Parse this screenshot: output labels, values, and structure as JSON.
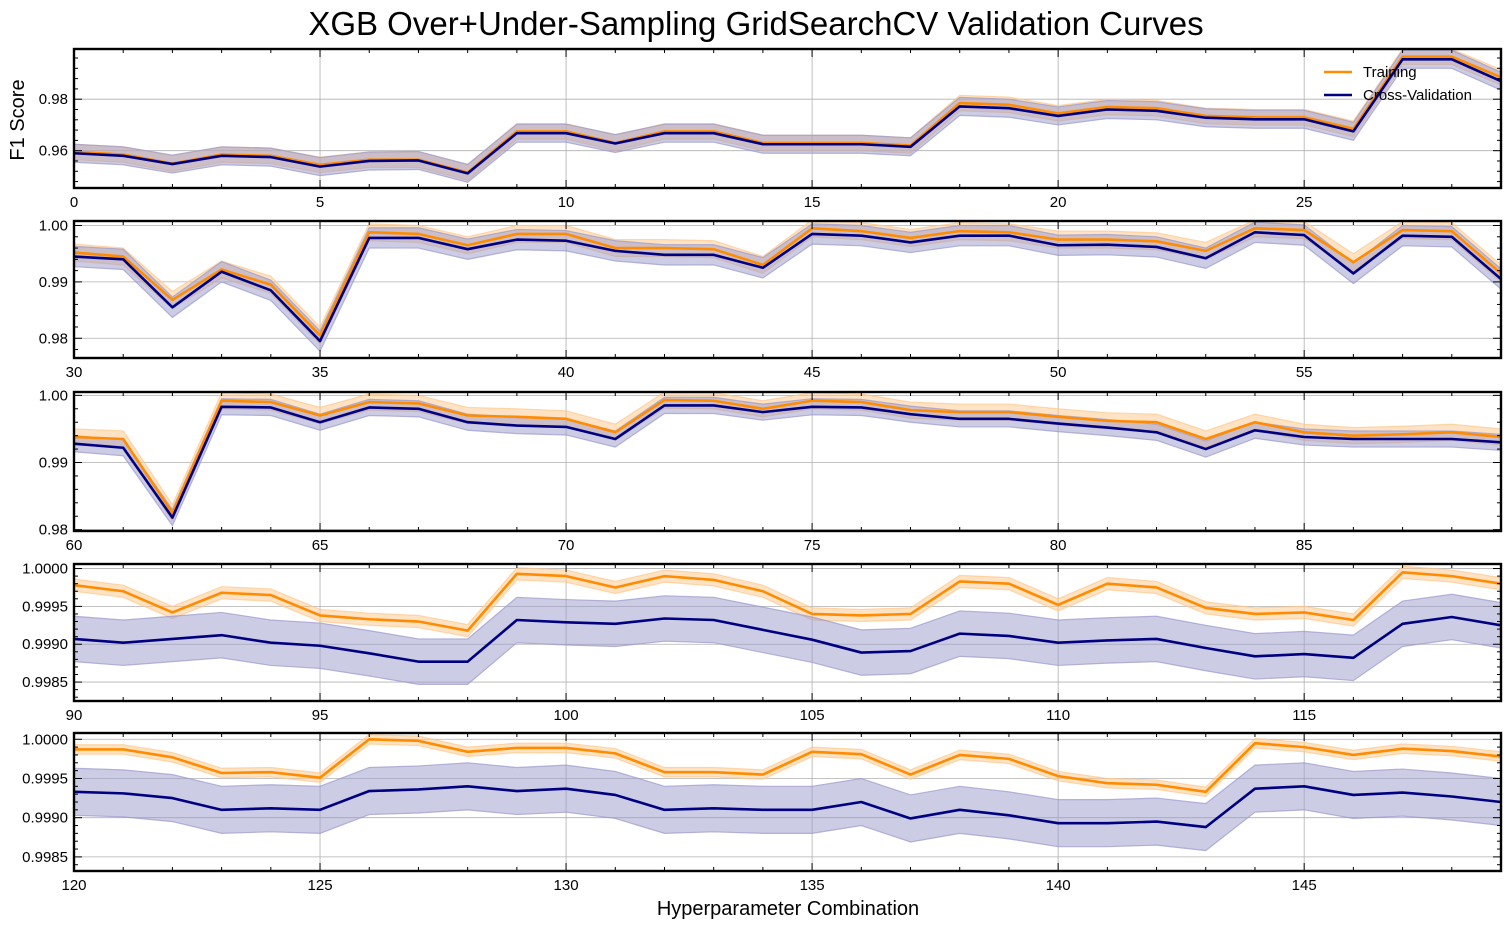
{
  "figure": {
    "title": "XGB Over+Under-Sampling GridSearchCV Validation Curves",
    "ylabel": "F1 Score",
    "xlabel": "Hyperparameter Combination"
  },
  "legend": {
    "placement": "top-right",
    "entries": [
      "Training",
      "Cross-Validation"
    ]
  },
  "colors": {
    "training": "#ff8c00",
    "training_band": "#ffc88a",
    "cv": "#000080",
    "cv_band": "#9999cc",
    "grid": "#b0b0b0"
  },
  "chart_data": [
    {
      "type": "line",
      "x_start": 0,
      "xlim": [
        0,
        29
      ],
      "xticks": [
        0,
        5,
        10,
        15,
        20,
        25
      ],
      "ylim": [
        0.9455,
        0.9995
      ],
      "yticks": [
        0.96,
        0.98
      ],
      "ytick_labels": [
        "0.96",
        "0.98"
      ],
      "grid": true,
      "series": [
        {
          "name": "Training",
          "values": [
            0.9595,
            0.9585,
            0.955,
            0.9585,
            0.958,
            0.9545,
            0.9565,
            0.9565,
            0.9515,
            0.9675,
            0.9675,
            0.963,
            0.9675,
            0.9675,
            0.963,
            0.963,
            0.963,
            0.962,
            0.9785,
            0.9778,
            0.9745,
            0.977,
            0.9765,
            0.9735,
            0.973,
            0.973,
            0.9685,
            0.9965,
            0.9965,
            0.9885
          ],
          "band": 0.003
        },
        {
          "name": "Cross-Validation",
          "values": [
            0.959,
            0.958,
            0.9548,
            0.958,
            0.9575,
            0.9538,
            0.956,
            0.9562,
            0.9512,
            0.9668,
            0.9668,
            0.9628,
            0.9668,
            0.9668,
            0.9625,
            0.9625,
            0.9625,
            0.9615,
            0.9772,
            0.9765,
            0.9735,
            0.976,
            0.9755,
            0.9728,
            0.9722,
            0.9722,
            0.9675,
            0.9955,
            0.9955,
            0.987
          ],
          "band": 0.0035
        }
      ]
    },
    {
      "type": "line",
      "x_start": 30,
      "xlim": [
        30,
        59
      ],
      "xticks": [
        30,
        35,
        40,
        45,
        50,
        55
      ],
      "ylim": [
        0.9765,
        1.0008
      ],
      "yticks": [
        0.98,
        0.99,
        1.0
      ],
      "ytick_labels": [
        "0.98",
        "0.99",
        "1.00"
      ],
      "grid": true,
      "series": [
        {
          "name": "Training",
          "values": [
            0.9952,
            0.9945,
            0.9868,
            0.9922,
            0.9895,
            0.9805,
            0.9988,
            0.9985,
            0.9965,
            0.9985,
            0.9985,
            0.996,
            0.996,
            0.9958,
            0.993,
            0.9995,
            0.999,
            0.9978,
            0.999,
            0.9988,
            0.9975,
            0.9975,
            0.9972,
            0.9955,
            0.9995,
            0.9992,
            0.9935,
            0.9992,
            0.999,
            0.9915
          ],
          "band": 0.0015
        },
        {
          "name": "Cross-Validation",
          "values": [
            0.9945,
            0.994,
            0.9855,
            0.9918,
            0.9885,
            0.9795,
            0.9978,
            0.9978,
            0.9958,
            0.9975,
            0.9973,
            0.9955,
            0.9948,
            0.9948,
            0.9925,
            0.9985,
            0.9982,
            0.997,
            0.9982,
            0.9982,
            0.9965,
            0.9966,
            0.9962,
            0.9942,
            0.9988,
            0.9983,
            0.9915,
            0.9982,
            0.998,
            0.9905
          ],
          "band": 0.0018
        }
      ]
    },
    {
      "type": "line",
      "x_start": 60,
      "xlim": [
        60,
        89
      ],
      "xticks": [
        60,
        65,
        70,
        75,
        80,
        85
      ],
      "ylim": [
        0.9798,
        1.0005
      ],
      "yticks": [
        0.98,
        0.99,
        1.0
      ],
      "ytick_labels": [
        "0.98",
        "0.99",
        "1.00"
      ],
      "grid": true,
      "series": [
        {
          "name": "Training",
          "values": [
            0.9938,
            0.9935,
            0.9825,
            0.9992,
            0.999,
            0.997,
            0.999,
            0.9988,
            0.997,
            0.9968,
            0.9965,
            0.9945,
            0.9993,
            0.9992,
            0.998,
            0.9992,
            0.999,
            0.9978,
            0.9975,
            0.9975,
            0.9968,
            0.9962,
            0.996,
            0.9935,
            0.996,
            0.9945,
            0.994,
            0.9942,
            0.9945,
            0.9938
          ],
          "band": 0.0012
        },
        {
          "name": "Cross-Validation",
          "values": [
            0.9928,
            0.9922,
            0.9818,
            0.9983,
            0.9982,
            0.996,
            0.9982,
            0.998,
            0.996,
            0.9955,
            0.9953,
            0.9935,
            0.9985,
            0.9985,
            0.9975,
            0.9983,
            0.9982,
            0.9972,
            0.9965,
            0.9965,
            0.9958,
            0.9952,
            0.9945,
            0.992,
            0.9948,
            0.9938,
            0.9935,
            0.9935,
            0.9935,
            0.993
          ],
          "band": 0.0012
        }
      ]
    },
    {
      "type": "line",
      "x_start": 90,
      "xlim": [
        90,
        119
      ],
      "xticks": [
        90,
        95,
        100,
        105,
        110,
        115
      ],
      "ylim": [
        0.99825,
        1.00006
      ],
      "yticks": [
        0.9985,
        0.999,
        0.9995,
        1.0
      ],
      "ytick_labels": [
        "0.9985",
        "0.9990",
        "0.9995",
        "1.0000"
      ],
      "grid": true,
      "series": [
        {
          "name": "Training",
          "values": [
            0.99978,
            0.9997,
            0.99942,
            0.99968,
            0.99965,
            0.99938,
            0.99933,
            0.9993,
            0.99918,
            0.99993,
            0.9999,
            0.99975,
            0.9999,
            0.99985,
            0.9997,
            0.9994,
            0.99938,
            0.9994,
            0.99983,
            0.9998,
            0.99952,
            0.9998,
            0.99975,
            0.99948,
            0.9994,
            0.99942,
            0.99932,
            0.99995,
            0.9999,
            0.9998
          ],
          "band": 8e-05
        },
        {
          "name": "Cross-Validation",
          "values": [
            0.99907,
            0.99902,
            0.99907,
            0.99912,
            0.99902,
            0.99898,
            0.99888,
            0.99877,
            0.99877,
            0.99932,
            0.99929,
            0.99927,
            0.99934,
            0.99932,
            0.99919,
            0.99906,
            0.99889,
            0.99891,
            0.99914,
            0.99911,
            0.99902,
            0.99905,
            0.99907,
            0.99895,
            0.99884,
            0.99887,
            0.99882,
            0.99927,
            0.99936,
            0.99925
          ],
          "band": 0.0003
        }
      ]
    },
    {
      "type": "line",
      "x_start": 120,
      "xlim": [
        120,
        149
      ],
      "xticks": [
        120,
        125,
        130,
        135,
        140,
        145
      ],
      "ylim": [
        0.99832,
        1.00008
      ],
      "yticks": [
        0.9985,
        0.999,
        0.9995,
        1.0
      ],
      "ytick_labels": [
        "0.9985",
        "0.9990",
        "0.9995",
        "1.0000"
      ],
      "grid": true,
      "series": [
        {
          "name": "Training",
          "values": [
            0.99987,
            0.99987,
            0.99977,
            0.99957,
            0.99958,
            0.99951,
            1.0,
            0.99998,
            0.99984,
            0.99989,
            0.99989,
            0.99982,
            0.99958,
            0.99958,
            0.99955,
            0.99984,
            0.99981,
            0.99955,
            0.9998,
            0.99975,
            0.99953,
            0.99944,
            0.99942,
            0.99933,
            0.99995,
            0.9999,
            0.9998,
            0.99988,
            0.99985,
            0.99978
          ],
          "band": 6e-05
        },
        {
          "name": "Cross-Validation",
          "values": [
            0.99933,
            0.99931,
            0.99925,
            0.9991,
            0.99912,
            0.9991,
            0.99934,
            0.99936,
            0.9994,
            0.99934,
            0.99937,
            0.99929,
            0.9991,
            0.99912,
            0.9991,
            0.9991,
            0.9992,
            0.99899,
            0.9991,
            0.99903,
            0.99893,
            0.99893,
            0.99895,
            0.99888,
            0.99937,
            0.9994,
            0.99929,
            0.99932,
            0.99927,
            0.9992
          ],
          "band": 0.0003
        }
      ]
    }
  ]
}
